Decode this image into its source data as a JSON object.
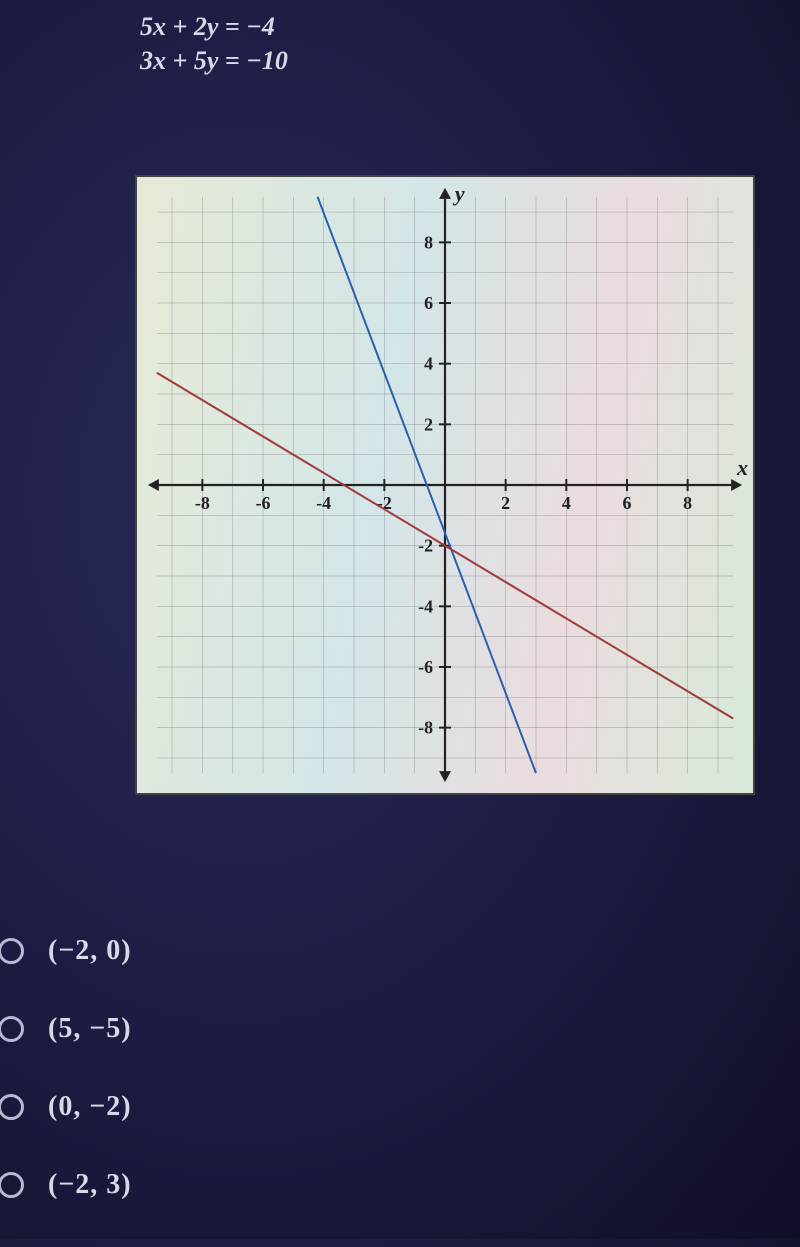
{
  "equations": [
    "5x + 2y = −4",
    "3x + 5y = −10"
  ],
  "chart": {
    "type": "line",
    "xlim": [
      -9.5,
      9.5
    ],
    "ylim": [
      -9.5,
      9.5
    ],
    "xticks": [
      -8,
      -6,
      -4,
      -2,
      2,
      4,
      6,
      8
    ],
    "yticks": [
      -8,
      -6,
      -4,
      -2,
      2,
      4,
      6,
      8
    ],
    "grid_step": 1,
    "grid_color": "#888888",
    "axis_color": "#222222",
    "axis_width": 2.2,
    "tick_label_color": "#222222",
    "tick_label_fontsize": 18,
    "axis_label_x": "x",
    "axis_label_y": "y",
    "axis_label_fontsize": 22,
    "background": "transparent",
    "lines": [
      {
        "name": "blue-line",
        "color": "#2a5fb0",
        "width": 2,
        "eq": "5x+2y=-4",
        "points": [
          [
            -4.2,
            9.5
          ],
          [
            3,
            -9.5
          ]
        ]
      },
      {
        "name": "red-line",
        "color": "#a03a3a",
        "width": 2,
        "eq": "3x+5y=-10",
        "points": [
          [
            -9.5,
            3.7
          ],
          [
            9.5,
            -7.7
          ]
        ]
      }
    ]
  },
  "options": [
    {
      "label": "(−2, 0)",
      "selected": false
    },
    {
      "label": "(5, −5)",
      "selected": false
    },
    {
      "label": "(0, −2)",
      "selected": false
    },
    {
      "label": "(−2, 3)",
      "selected": false
    }
  ],
  "colors": {
    "page_bg": "#1a1a3e",
    "text": "#d8d8e8",
    "radio_border": "#b8b8d0"
  }
}
